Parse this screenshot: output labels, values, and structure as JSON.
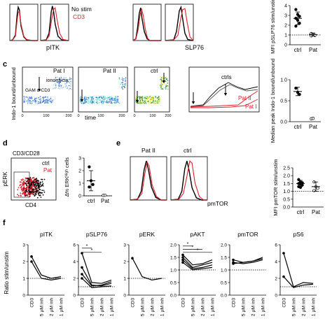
{
  "panel_letters": {
    "c": "c",
    "d": "d",
    "e": "e",
    "f": "f"
  },
  "chart_data": [
    {
      "id": "a_hist",
      "type": "line",
      "xlabel": "pITK",
      "legend": [
        {
          "name": "No stim",
          "color": "#000000"
        },
        {
          "name": "CD3",
          "color": "#e0202a"
        }
      ],
      "series": [
        {
          "name": "left",
          "color": "#000000",
          "x": [
            0,
            0.1,
            0.2,
            0.26,
            0.3,
            0.34,
            0.4,
            0.5,
            0.6,
            0.8,
            1
          ],
          "y": [
            0,
            0.02,
            0.15,
            0.7,
            0.92,
            0.85,
            0.4,
            0.1,
            0.02,
            0,
            0
          ]
        },
        {
          "name": "left-red",
          "color": "#e0202a",
          "x": [
            0,
            0.1,
            0.2,
            0.26,
            0.3,
            0.34,
            0.4,
            0.5,
            0.6,
            0.8,
            1
          ],
          "y": [
            0,
            0.02,
            0.12,
            0.55,
            0.78,
            0.8,
            0.45,
            0.12,
            0.03,
            0,
            0
          ]
        },
        {
          "name": "right",
          "color": "#000000",
          "x": [
            0,
            0.2,
            0.3,
            0.38,
            0.42,
            0.46,
            0.52,
            0.62,
            0.75,
            1
          ],
          "y": [
            0,
            0.02,
            0.2,
            0.8,
            0.95,
            0.82,
            0.45,
            0.12,
            0.02,
            0
          ]
        },
        {
          "name": "right-red",
          "color": "#e0202a",
          "x": [
            0,
            0.2,
            0.3,
            0.4,
            0.46,
            0.52,
            0.58,
            0.68,
            0.8,
            1
          ],
          "y": [
            0,
            0.02,
            0.12,
            0.6,
            0.85,
            0.9,
            0.6,
            0.2,
            0.03,
            0
          ]
        }
      ]
    },
    {
      "id": "a_slp76",
      "type": "line",
      "xlabel": "SLP76",
      "series": [
        {
          "name": "left",
          "color": "#000000",
          "x": [
            0,
            0.1,
            0.16,
            0.22,
            0.27,
            0.32,
            0.4,
            0.5,
            0.6,
            1
          ],
          "y": [
            0,
            0.05,
            0.35,
            0.75,
            0.9,
            0.6,
            0.25,
            0.05,
            0,
            0
          ]
        },
        {
          "name": "left-red",
          "color": "#e0202a",
          "x": [
            0,
            0.1,
            0.18,
            0.24,
            0.3,
            0.36,
            0.44,
            0.52,
            0.6,
            1
          ],
          "y": [
            0,
            0.04,
            0.3,
            0.65,
            0.88,
            0.7,
            0.3,
            0.06,
            0,
            0
          ]
        },
        {
          "name": "right",
          "color": "#000000",
          "x": [
            0,
            0.3,
            0.4,
            0.5,
            0.56,
            0.62,
            0.7,
            0.8,
            1
          ],
          "y": [
            0,
            0.02,
            0.25,
            0.82,
            0.92,
            0.6,
            0.2,
            0.03,
            0
          ]
        },
        {
          "name": "right-red",
          "color": "#e0202a",
          "x": [
            0,
            0.3,
            0.45,
            0.55,
            0.62,
            0.7,
            0.78,
            0.88,
            1
          ],
          "y": [
            0,
            0.02,
            0.15,
            0.6,
            0.85,
            0.88,
            0.5,
            0.1,
            0
          ]
        }
      ]
    },
    {
      "id": "b_scatter",
      "type": "scatter",
      "ylabel": "MFI pSLP76 stim/unstim",
      "categories": [
        "ctrl",
        "Pat"
      ],
      "ylim": [
        0,
        4
      ],
      "yticks": [
        "0",
        "1",
        "2",
        "3",
        "4"
      ],
      "dashed_y": 1,
      "groups": [
        {
          "category": "ctrl",
          "mean": 2.7,
          "sd": 0.65,
          "points": [
            3.6,
            3.1,
            2.9,
            2.7,
            2.5,
            2.2,
            1.9
          ]
        },
        {
          "category": "Pat",
          "mean": 1.05,
          "sd": 0.15,
          "points": [
            1.15,
            1.05,
            0.95,
            0.9
          ]
        }
      ]
    },
    {
      "id": "c_fig",
      "type": "scatter",
      "ylabel": "Indo-1 bound/unbound",
      "xlabel": "time",
      "panel_titles": [
        "Pat I",
        "Pat II",
        "ctrl"
      ],
      "annotations": {
        "ionomycin": "ionomycin",
        "gam": "GAM α-CD3",
        "ctrls": "ctrls",
        "pat2": "Pat II",
        "pat1": "Pat I"
      }
    },
    {
      "id": "c_scatter",
      "type": "scatter",
      "ylabel": "Median peak Indo-1 bound/unbound",
      "categories": [
        "ctrl",
        "Pat"
      ],
      "ylim": [
        0,
        1
      ],
      "yticks": [
        "0.0",
        "0.5",
        "1.0"
      ],
      "groups": [
        {
          "category": "ctrl",
          "mean": 0.72,
          "sd": 0.1,
          "points": [
            0.8,
            0.7,
            0.65
          ]
        },
        {
          "category": "Pat",
          "points": [
            0.07,
            0.08
          ]
        }
      ]
    },
    {
      "id": "d_flow",
      "type": "scatter",
      "title": "CD3/CD28",
      "xlabel": "CD4",
      "ylabel": "pERK",
      "legend": [
        {
          "name": "ctrl",
          "color": "#000000"
        },
        {
          "name": "Pat",
          "color": "#e0202a"
        }
      ]
    },
    {
      "id": "d_scatter",
      "type": "scatter",
      "ylabel": "∆% ERKᴴⁱᵍʰ cells",
      "categories": [
        "ctrl",
        "Pat"
      ],
      "ylim": [
        0,
        3
      ],
      "yticks": [
        "0",
        "1",
        "2",
        "3"
      ],
      "dashed_y": 0,
      "groups": [
        {
          "category": "ctrl",
          "mean": 1.2,
          "sd": 0.8,
          "points": [
            2.3,
            1.2,
            0.9,
            0.7
          ]
        },
        {
          "category": "Pat",
          "points": [
            0.03,
            0.05
          ]
        }
      ]
    },
    {
      "id": "e_hist",
      "type": "line",
      "xlabel": "pmTOR",
      "panel_titles": [
        "Pat II",
        "ctrl"
      ],
      "series": [
        {
          "name": "left",
          "color": "#000000",
          "x": [
            0,
            0.2,
            0.3,
            0.38,
            0.44,
            0.5,
            0.58,
            0.7,
            0.85,
            1
          ],
          "y": [
            0,
            0.02,
            0.2,
            0.7,
            0.9,
            0.7,
            0.3,
            0.06,
            0,
            0
          ]
        },
        {
          "name": "left-red",
          "color": "#e0202a",
          "x": [
            0,
            0.2,
            0.32,
            0.4,
            0.46,
            0.52,
            0.6,
            0.72,
            0.85,
            1
          ],
          "y": [
            0,
            0.02,
            0.15,
            0.6,
            0.88,
            0.78,
            0.35,
            0.08,
            0,
            0
          ]
        },
        {
          "name": "right",
          "color": "#000000",
          "x": [
            0,
            0.2,
            0.3,
            0.38,
            0.44,
            0.5,
            0.58,
            0.7,
            0.85,
            1
          ],
          "y": [
            0,
            0.02,
            0.2,
            0.72,
            0.9,
            0.68,
            0.28,
            0.05,
            0,
            0
          ]
        },
        {
          "name": "right-red",
          "color": "#e0202a",
          "x": [
            0,
            0.22,
            0.34,
            0.44,
            0.52,
            0.58,
            0.66,
            0.78,
            0.9,
            1
          ],
          "y": [
            0,
            0.02,
            0.15,
            0.55,
            0.9,
            0.85,
            0.4,
            0.08,
            0,
            0
          ]
        }
      ]
    },
    {
      "id": "e_scatter",
      "type": "scatter",
      "ylabel": "MFI pmTOR stim/unstim",
      "categories": [
        "ctrl",
        "Pat"
      ],
      "ylim": [
        0,
        2.5
      ],
      "yticks": [
        "0.0",
        "0.5",
        "1.0",
        "1.5",
        "2.0",
        "2.5"
      ],
      "dashed_y": 1,
      "groups": [
        {
          "category": "ctrl",
          "mean": 1.5,
          "sd": 0.2,
          "points": [
            1.75,
            1.6,
            1.55,
            1.5,
            1.45,
            1.4,
            1.3,
            1.25
          ]
        },
        {
          "category": "Pat",
          "mean": 1.3,
          "sd": 0.3,
          "points": [
            1.6,
            1.3,
            1.2,
            1.05
          ]
        }
      ]
    },
    {
      "id": "f_lines",
      "type": "line",
      "ylabel": "Ratio stim/unstim",
      "xlabels": [
        "CD3",
        "5 μM inh",
        "2 μM inh",
        "1 μM inh"
      ],
      "panels": [
        {
          "title": "pITK",
          "ylim": [
            0,
            3
          ],
          "yticks": [
            "0",
            "1",
            "2",
            "3"
          ],
          "lines": [
            [
              2.3,
              1.2,
              1.0,
              1.1
            ],
            [
              2.0,
              1.0,
              0.9,
              1.0
            ]
          ],
          "sig": []
        },
        {
          "title": "pSLP76",
          "ylim": [
            0,
            6
          ],
          "yticks": [
            "0",
            "2",
            "4",
            "6"
          ],
          "lines": [
            [
              5.0,
              1.5,
              1.4,
              1.8
            ],
            [
              3.3,
              1.2,
              1.1,
              1.4
            ],
            [
              2.5,
              1.1,
              1.2,
              1.6
            ],
            [
              2.0,
              0.9,
              1.0,
              1.1
            ]
          ],
          "sig": [
            {
              "from": 0,
              "to": 1,
              "level": 5.6,
              "label": "*"
            },
            {
              "from": 0,
              "to": 2,
              "level": 5.1,
              "label": "*"
            }
          ]
        },
        {
          "title": "pERK",
          "ylim": [
            0,
            3
          ],
          "yticks": [
            "0",
            "1",
            "2",
            "3"
          ],
          "lines": [
            [
              2.2,
              1.1,
              0.9,
              1.0
            ]
          ],
          "sig": []
        },
        {
          "title": "pAKT",
          "ylim": [
            0,
            2.0
          ],
          "yticks": [
            "0.0",
            "0.5",
            "1.0",
            "1.5",
            "2.0"
          ],
          "lines": [
            [
              1.6,
              1.2,
              1.25,
              1.4
            ],
            [
              1.5,
              1.1,
              1.2,
              1.3
            ],
            [
              1.4,
              1.05,
              1.1,
              1.2
            ],
            [
              1.3,
              1.0,
              1.05,
              1.1
            ]
          ],
          "sig": [
            {
              "from": 0,
              "to": 1,
              "level": 1.95,
              "label": "*"
            },
            {
              "from": 0,
              "to": 2,
              "level": 1.82,
              "label": "*"
            },
            {
              "from": 0,
              "to": 3,
              "level": 1.7,
              "label": "*"
            }
          ]
        },
        {
          "title": "pmTOR",
          "ylim": [
            0,
            2.0
          ],
          "yticks": [
            "0.0",
            "0.5",
            "1.0",
            "1.5",
            "2.0"
          ],
          "lines": [
            [
              1.4,
              1.3,
              1.35,
              1.5
            ],
            [
              1.3,
              1.25,
              1.3,
              1.4
            ],
            [
              1.25,
              1.3,
              1.35,
              1.45
            ]
          ],
          "sig": []
        },
        {
          "title": "pS6",
          "ylim": [
            0,
            6
          ],
          "yticks": [
            "0",
            "2",
            "4",
            "6"
          ],
          "lines": [
            [
              5.0,
              1.0,
              1.5,
              1.4
            ],
            [
              2.2,
              0.9,
              1.2,
              1.3
            ]
          ],
          "sig": []
        }
      ]
    }
  ]
}
